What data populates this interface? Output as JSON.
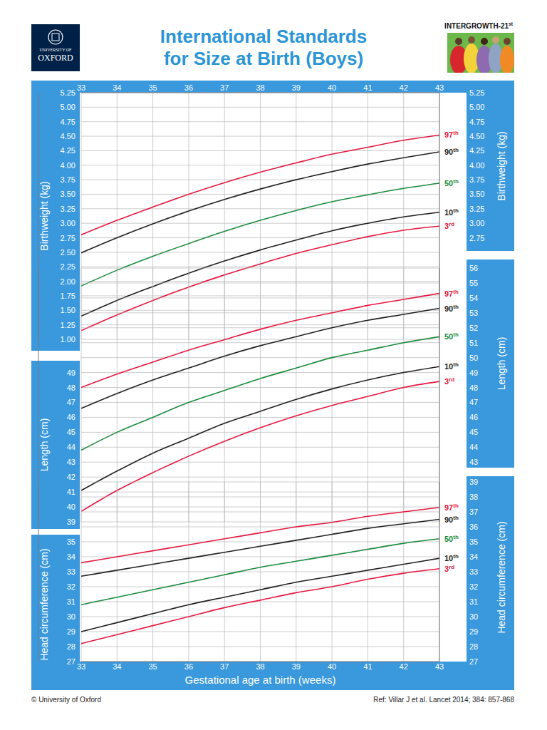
{
  "header": {
    "title": [
      "International Standards",
      "for Size at Birth (Boys)"
    ],
    "logo": [
      "UNIVERSITY OF",
      "OXFORD"
    ],
    "badge": "INTERGROWTH-21st"
  },
  "footer": {
    "left": "© University of Oxford",
    "right": "Ref: Villar J et al. Lancet 2014; 384: 857-868"
  },
  "chart_data": [
    {
      "type": "line",
      "ylabel": "Birthweight (kg)",
      "x": [
        33,
        34,
        35,
        36,
        37,
        38,
        39,
        40,
        41,
        42,
        43
      ],
      "xlim": [
        33,
        43
      ],
      "xticks": [
        33,
        34,
        35,
        36,
        37,
        38,
        39,
        40,
        41,
        42,
        43
      ],
      "ylim": [
        1,
        5.25
      ],
      "yticks": [
        {
          "value": 1,
          "label": "1.00"
        },
        1.25,
        {
          "value": 1.5,
          "label": "1.50"
        },
        1.75,
        {
          "value": 2,
          "label": "2.00"
        },
        2.25,
        {
          "value": 2.5,
          "label": "2.50"
        },
        2.75,
        {
          "value": 3,
          "label": "3.00"
        },
        3.25,
        {
          "value": 3.5,
          "label": "3.50"
        },
        3.75,
        {
          "value": 4,
          "label": "4.00"
        },
        4.25,
        {
          "value": 4.5,
          "label": "4.50"
        },
        4.75,
        {
          "value": 5,
          "label": "5.00"
        },
        5.25
      ],
      "y2lim": [
        1,
        5.25
      ],
      "y2ticks": [
        2.75,
        {
          "value": 3,
          "label": "3.00"
        },
        3.25,
        {
          "value": 3.5,
          "label": "3.50"
        },
        3.75,
        {
          "value": 4,
          "label": "4.00"
        },
        4.25,
        {
          "value": 4.5,
          "label": "4.50"
        },
        4.75,
        {
          "value": 5,
          "label": "5.00"
        },
        5.25
      ],
      "grid": true,
      "series": [
        {
          "name": "97th",
          "color": "#e5173f",
          "values": [
            2.8,
            3.05,
            3.28,
            3.5,
            3.7,
            3.88,
            4.04,
            4.19,
            4.31,
            4.43,
            4.52
          ]
        },
        {
          "name": "90th",
          "color": "#231f20",
          "values": [
            2.49,
            2.75,
            2.99,
            3.21,
            3.41,
            3.59,
            3.75,
            3.89,
            4.02,
            4.13,
            4.23
          ]
        },
        {
          "name": "50th",
          "color": "#1b8a3c",
          "values": [
            1.92,
            2.19,
            2.43,
            2.65,
            2.86,
            3.05,
            3.22,
            3.37,
            3.49,
            3.6,
            3.69
          ]
        },
        {
          "name": "10th",
          "color": "#231f20",
          "values": [
            1.4,
            1.67,
            1.91,
            2.14,
            2.35,
            2.54,
            2.71,
            2.87,
            3.0,
            3.11,
            3.19
          ]
        },
        {
          "name": "3rd",
          "color": "#e5173f",
          "values": [
            1.15,
            1.42,
            1.67,
            1.9,
            2.11,
            2.3,
            2.48,
            2.63,
            2.77,
            2.88,
            2.95
          ]
        }
      ]
    },
    {
      "type": "line",
      "ylabel": "Length (cm)",
      "tick_labels": "y",
      "x": [
        33,
        34,
        35,
        36,
        37,
        38,
        39,
        40,
        41,
        42,
        43
      ],
      "xlim": [
        33,
        43
      ],
      "xticks": [
        33,
        34,
        35,
        36,
        37,
        38,
        39,
        40,
        41,
        42,
        43
      ],
      "ylim": [
        39,
        56
      ],
      "yticks": [
        39,
        40,
        41,
        42,
        43,
        44,
        45,
        46,
        47,
        48,
        49
      ],
      "y2lim": [
        39,
        56
      ],
      "y2ticks": [
        43,
        44,
        45,
        46,
        47,
        48,
        49,
        50,
        51,
        52,
        53,
        54,
        55,
        56
      ],
      "grid": true,
      "series": [
        {
          "name": "97th",
          "color": "#e5173f",
          "values": [
            48.0,
            48.9,
            49.7,
            50.5,
            51.2,
            51.9,
            52.5,
            53.0,
            53.5,
            53.9,
            54.3
          ]
        },
        {
          "name": "90th",
          "color": "#231f20",
          "values": [
            46.6,
            47.6,
            48.5,
            49.3,
            50.1,
            50.8,
            51.4,
            52.0,
            52.5,
            52.9,
            53.3
          ]
        },
        {
          "name": "50th",
          "color": "#1b8a3c",
          "values": [
            43.8,
            45.0,
            46.0,
            47.0,
            47.8,
            48.6,
            49.3,
            50.0,
            50.5,
            51.0,
            51.4
          ]
        },
        {
          "name": "10th",
          "color": "#231f20",
          "values": [
            41.1,
            42.4,
            43.6,
            44.6,
            45.6,
            46.4,
            47.2,
            47.9,
            48.5,
            49.0,
            49.4
          ]
        },
        {
          "name": "3rd",
          "color": "#e5173f",
          "values": [
            39.7,
            41.1,
            42.3,
            43.4,
            44.4,
            45.3,
            46.1,
            46.8,
            47.4,
            48.0,
            48.4
          ]
        }
      ]
    },
    {
      "type": "line",
      "ylabel": "Head circumference (cm)",
      "xlabel": "Gestational age at birth (weeks)",
      "x": [
        33,
        34,
        35,
        36,
        37,
        38,
        39,
        40,
        41,
        42,
        43
      ],
      "xlim": [
        33,
        43
      ],
      "xticks": [
        33,
        34,
        35,
        36,
        37,
        38,
        39,
        40,
        41,
        42,
        43
      ],
      "ylim": [
        27,
        39
      ],
      "yticks": [
        27,
        28,
        29,
        30,
        31,
        32,
        33,
        34,
        35
      ],
      "y2lim": [
        27,
        39
      ],
      "y2ticks": [
        27,
        28,
        29,
        30,
        31,
        32,
        33,
        34,
        35,
        36,
        37,
        38,
        39
      ],
      "grid": true,
      "series": [
        {
          "name": "97th",
          "color": "#e5173f",
          "values": [
            33.6,
            34.0,
            34.4,
            34.8,
            35.2,
            35.6,
            36.0,
            36.3,
            36.7,
            37.0,
            37.3
          ]
        },
        {
          "name": "90th",
          "color": "#231f20",
          "values": [
            32.7,
            33.1,
            33.5,
            33.9,
            34.3,
            34.7,
            35.1,
            35.5,
            35.9,
            36.2,
            36.5
          ]
        },
        {
          "name": "50th",
          "color": "#1b8a3c",
          "values": [
            30.8,
            31.3,
            31.8,
            32.3,
            32.8,
            33.3,
            33.7,
            34.1,
            34.5,
            34.9,
            35.2
          ]
        },
        {
          "name": "10th",
          "color": "#231f20",
          "values": [
            29.0,
            29.6,
            30.2,
            30.8,
            31.3,
            31.8,
            32.3,
            32.7,
            33.1,
            33.5,
            33.9
          ]
        },
        {
          "name": "3rd",
          "color": "#e5173f",
          "values": [
            28.2,
            28.8,
            29.4,
            30.0,
            30.6,
            31.1,
            31.6,
            32.0,
            32.5,
            32.9,
            33.2
          ]
        }
      ]
    }
  ]
}
